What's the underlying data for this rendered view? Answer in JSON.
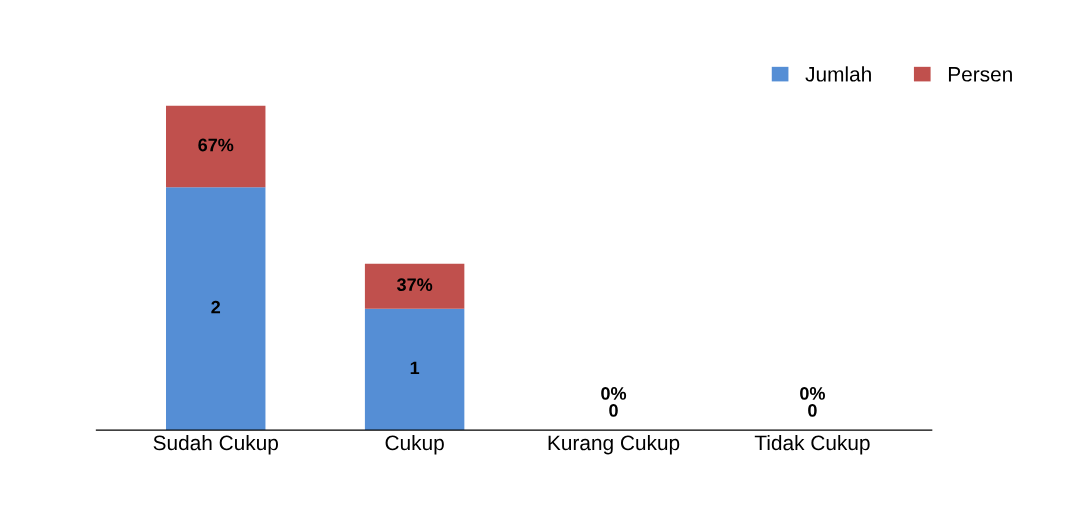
{
  "chart_data": {
    "type": "bar",
    "stacked": true,
    "categories": [
      "Sudah Cukup",
      "Cukup",
      "Kurang Cukup",
      "Tidak Cukup"
    ],
    "series": [
      {
        "name": "Jumlah",
        "color": "#558ed5",
        "values": [
          2,
          1,
          0,
          0
        ],
        "value_labels": [
          "2",
          "1",
          "0",
          "0"
        ]
      },
      {
        "name": "Persen",
        "color": "#c0504d",
        "values": [
          0.67,
          0.37,
          0,
          0
        ],
        "value_labels": [
          "67%",
          "37%",
          "0%",
          "0%"
        ]
      }
    ],
    "ylim": [
      0,
      3
    ],
    "tick_labels": "x",
    "legend": "top right",
    "grid": false
  }
}
